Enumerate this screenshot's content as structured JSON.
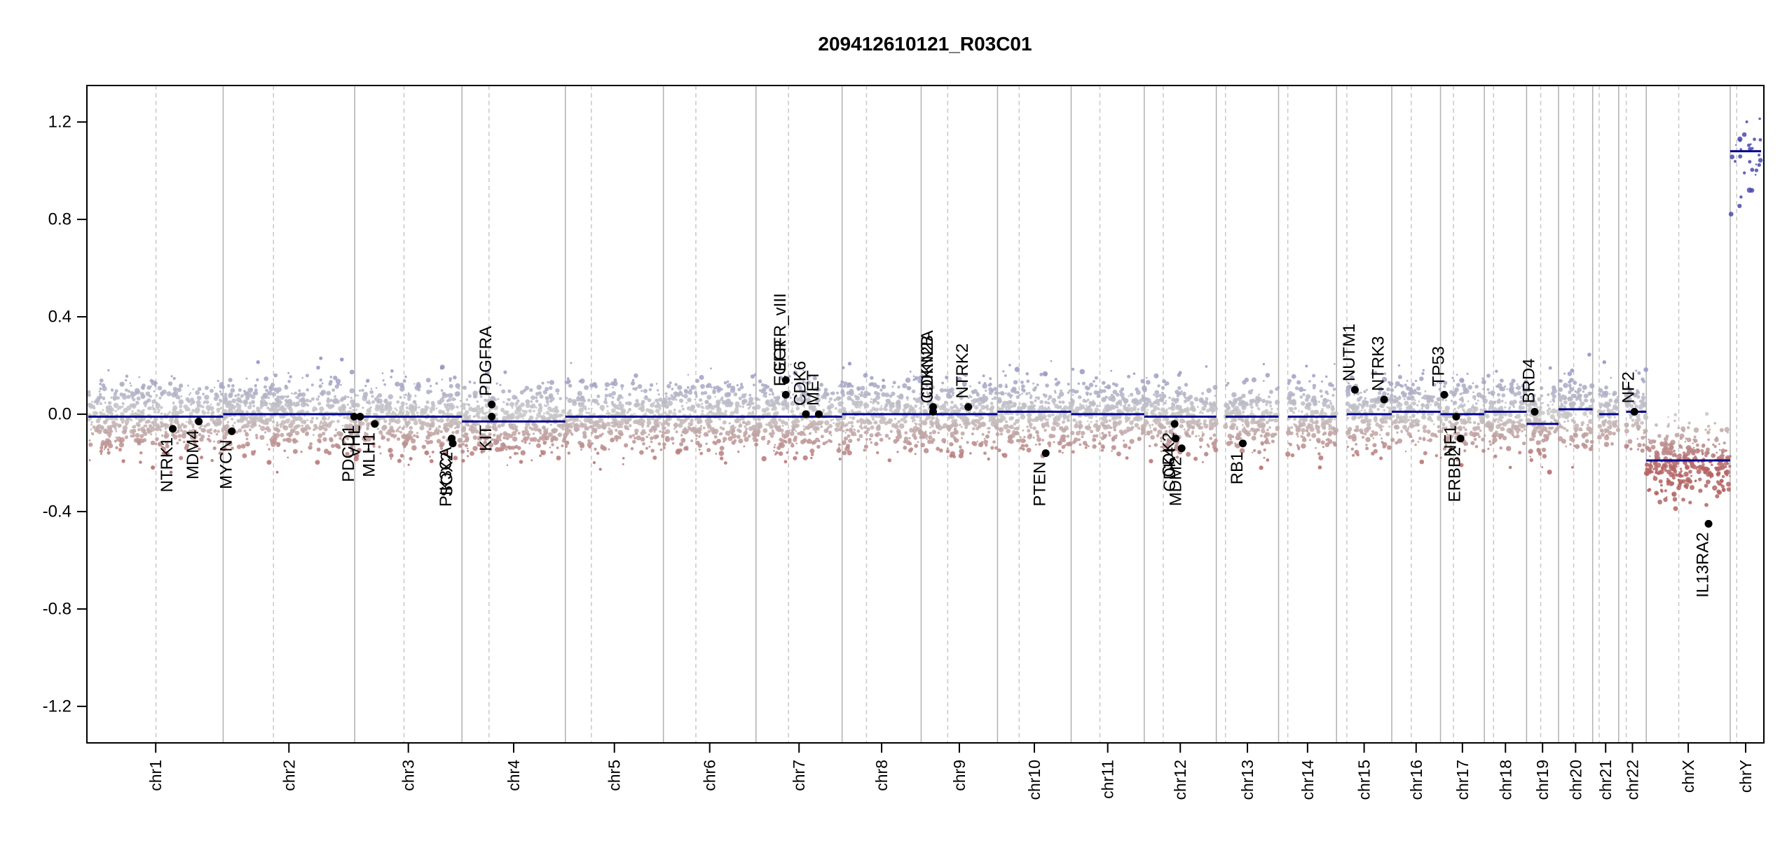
{
  "chart_data": {
    "type": "scatter",
    "title": "209412610121_R03C01",
    "xlabel": "",
    "ylabel": "",
    "ylim": [
      -1.35,
      1.35
    ],
    "y_ticks": [
      -1.2,
      -0.8,
      -0.4,
      0.0,
      0.4,
      0.8,
      1.2
    ],
    "y_tick_labels": [
      "-1.2",
      "-0.8",
      "-0.4",
      "0.0",
      "0.4",
      "0.8",
      "1.2"
    ],
    "grid": "vertical chromosome separators (solid) and centromeres (dashed)",
    "legend": "none",
    "colors": {
      "gain": "#8c8cc4",
      "loss": "#b46464",
      "neutral": "#c8c8c8",
      "segment": "#00008b",
      "boundary": "#b0b0b0",
      "centromere": "#c8c8c8",
      "gene_point": "#000000"
    },
    "chromosomes": [
      {
        "name": "chr1",
        "len": 249,
        "cen": 125,
        "segments": [
          [
            0,
            249,
            -0.01
          ]
        ]
      },
      {
        "name": "chr2",
        "len": 243,
        "cen": 93,
        "segments": [
          [
            0,
            243,
            0.0
          ]
        ]
      },
      {
        "name": "chr3",
        "len": 198,
        "cen": 91,
        "segments": [
          [
            0,
            198,
            -0.01
          ]
        ]
      },
      {
        "name": "chr4",
        "len": 191,
        "cen": 50,
        "segments": [
          [
            0,
            191,
            -0.03
          ]
        ]
      },
      {
        "name": "chr5",
        "len": 181,
        "cen": 48,
        "segments": [
          [
            0,
            181,
            -0.01
          ]
        ]
      },
      {
        "name": "chr6",
        "len": 171,
        "cen": 60,
        "segments": [
          [
            0,
            171,
            -0.01
          ]
        ]
      },
      {
        "name": "chr7",
        "len": 159,
        "cen": 60,
        "segments": [
          [
            0,
            159,
            -0.01
          ]
        ]
      },
      {
        "name": "chr8",
        "len": 146,
        "cen": 45,
        "segments": [
          [
            0,
            146,
            0.0
          ]
        ]
      },
      {
        "name": "chr9",
        "len": 141,
        "cen": 49,
        "segments": [
          [
            0,
            141,
            0.0
          ]
        ]
      },
      {
        "name": "chr10",
        "len": 136,
        "cen": 40,
        "segments": [
          [
            0,
            136,
            0.01
          ]
        ]
      },
      {
        "name": "chr11",
        "len": 135,
        "cen": 53,
        "segments": [
          [
            0,
            135,
            0.0
          ]
        ]
      },
      {
        "name": "chr12",
        "len": 133,
        "cen": 35,
        "segments": [
          [
            0,
            133,
            -0.01
          ]
        ]
      },
      {
        "name": "chr13",
        "len": 115,
        "cen": 17,
        "segments": [
          [
            17,
            115,
            -0.01
          ]
        ]
      },
      {
        "name": "chr14",
        "len": 107,
        "cen": 17,
        "segments": [
          [
            17,
            107,
            -0.01
          ]
        ]
      },
      {
        "name": "chr15",
        "len": 102,
        "cen": 19,
        "segments": [
          [
            19,
            102,
            0.0
          ]
        ]
      },
      {
        "name": "chr16",
        "len": 90,
        "cen": 36,
        "segments": [
          [
            0,
            90,
            0.01
          ]
        ]
      },
      {
        "name": "chr17",
        "len": 81,
        "cen": 24,
        "segments": [
          [
            0,
            81,
            0.0
          ]
        ]
      },
      {
        "name": "chr18",
        "len": 78,
        "cen": 17,
        "segments": [
          [
            0,
            78,
            0.01
          ]
        ]
      },
      {
        "name": "chr19",
        "len": 59,
        "cen": 26,
        "segments": [
          [
            0,
            59,
            -0.04
          ]
        ]
      },
      {
        "name": "chr20",
        "len": 63,
        "cen": 28,
        "segments": [
          [
            0,
            63,
            0.02
          ]
        ]
      },
      {
        "name": "chr21",
        "len": 48,
        "cen": 12,
        "segments": [
          [
            12,
            48,
            0.0
          ]
        ]
      },
      {
        "name": "chr22",
        "len": 51,
        "cen": 14,
        "segments": [
          [
            14,
            51,
            0.01
          ]
        ]
      },
      {
        "name": "chrX",
        "len": 155,
        "cen": 60,
        "segments": [
          [
            0,
            155,
            -0.19
          ]
        ]
      },
      {
        "name": "chrY",
        "len": 57,
        "cen": 12,
        "segments": [
          [
            0,
            57,
            1.08
          ]
        ]
      }
    ],
    "genes": [
      {
        "name": "NTRK1",
        "chr": "chr1",
        "pos": 156,
        "value": -0.06
      },
      {
        "name": "MDM4",
        "chr": "chr1",
        "pos": 204,
        "value": -0.03
      },
      {
        "name": "MYCN",
        "chr": "chr2",
        "pos": 16,
        "value": -0.07
      },
      {
        "name": "VHL",
        "chr": "chr3",
        "pos": 10,
        "value": -0.01
      },
      {
        "name": "PDCD1",
        "chr": "chr2",
        "pos": 242,
        "value": -0.01
      },
      {
        "name": "MLH1",
        "chr": "chr3",
        "pos": 37,
        "value": -0.04
      },
      {
        "name": "SOX2",
        "chr": "chr3",
        "pos": 181,
        "value": -0.12
      },
      {
        "name": "PIK3CA",
        "chr": "chr3",
        "pos": 179,
        "value": -0.1
      },
      {
        "name": "KIT",
        "chr": "chr4",
        "pos": 55,
        "value": -0.01
      },
      {
        "name": "PDGFRA",
        "chr": "chr4",
        "pos": 55,
        "value": 0.04
      },
      {
        "name": "EGFR",
        "chr": "chr7",
        "pos": 55,
        "value": 0.08
      },
      {
        "name": "EGFR_vIII",
        "chr": "chr7",
        "pos": 55,
        "value": 0.14
      },
      {
        "name": "MET",
        "chr": "chr7",
        "pos": 116,
        "value": 0.0
      },
      {
        "name": "CDK6",
        "chr": "chr7",
        "pos": 92,
        "value": 0.0
      },
      {
        "name": "CDKN2A",
        "chr": "chr9",
        "pos": 22,
        "value": 0.03
      },
      {
        "name": "CDKN2B",
        "chr": "chr9",
        "pos": 22,
        "value": 0.01
      },
      {
        "name": "CDK2",
        "chr": "chr12",
        "pos": 56,
        "value": -0.04
      },
      {
        "name": "NTRK2",
        "chr": "chr9",
        "pos": 87,
        "value": 0.03
      },
      {
        "name": "PTEN",
        "chr": "chr10",
        "pos": 89,
        "value": -0.16
      },
      {
        "name": "CDK4",
        "chr": "chr12",
        "pos": 58,
        "value": -0.1
      },
      {
        "name": "MDM2",
        "chr": "chr12",
        "pos": 69,
        "value": -0.14
      },
      {
        "name": "RB1",
        "chr": "chr13",
        "pos": 49,
        "value": -0.12
      },
      {
        "name": "NUTM1",
        "chr": "chr15",
        "pos": 34,
        "value": 0.1
      },
      {
        "name": "NTRK3",
        "chr": "chr15",
        "pos": 88,
        "value": 0.06
      },
      {
        "name": "TP53",
        "chr": "chr17",
        "pos": 7,
        "value": 0.08
      },
      {
        "name": "NF1",
        "chr": "chr17",
        "pos": 29,
        "value": -0.01
      },
      {
        "name": "ERBB2",
        "chr": "chr17",
        "pos": 37,
        "value": -0.1
      },
      {
        "name": "BRD4",
        "chr": "chr19",
        "pos": 15,
        "value": 0.01
      },
      {
        "name": "NF2",
        "chr": "chr22",
        "pos": 29,
        "value": 0.01
      },
      {
        "name": "IL13RA2",
        "chr": "chrX",
        "pos": 115,
        "value": -0.45
      }
    ]
  }
}
